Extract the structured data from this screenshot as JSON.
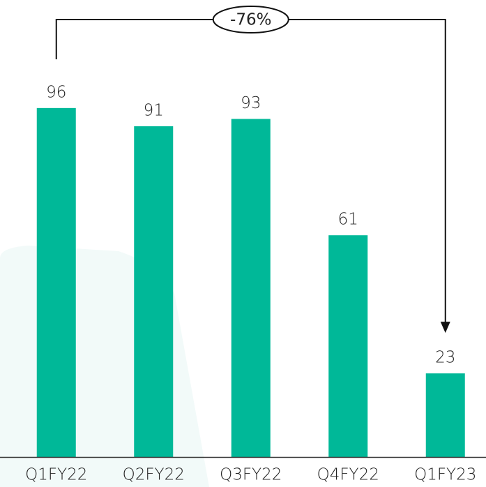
{
  "chart_data": {
    "type": "bar",
    "categories": [
      "Q1FY22",
      "Q2FY22",
      "Q3FY22",
      "Q4FY22",
      "Q1FY23"
    ],
    "values": [
      96,
      91,
      93,
      61,
      23
    ],
    "color": "#00b898",
    "annotation": "-76%"
  }
}
